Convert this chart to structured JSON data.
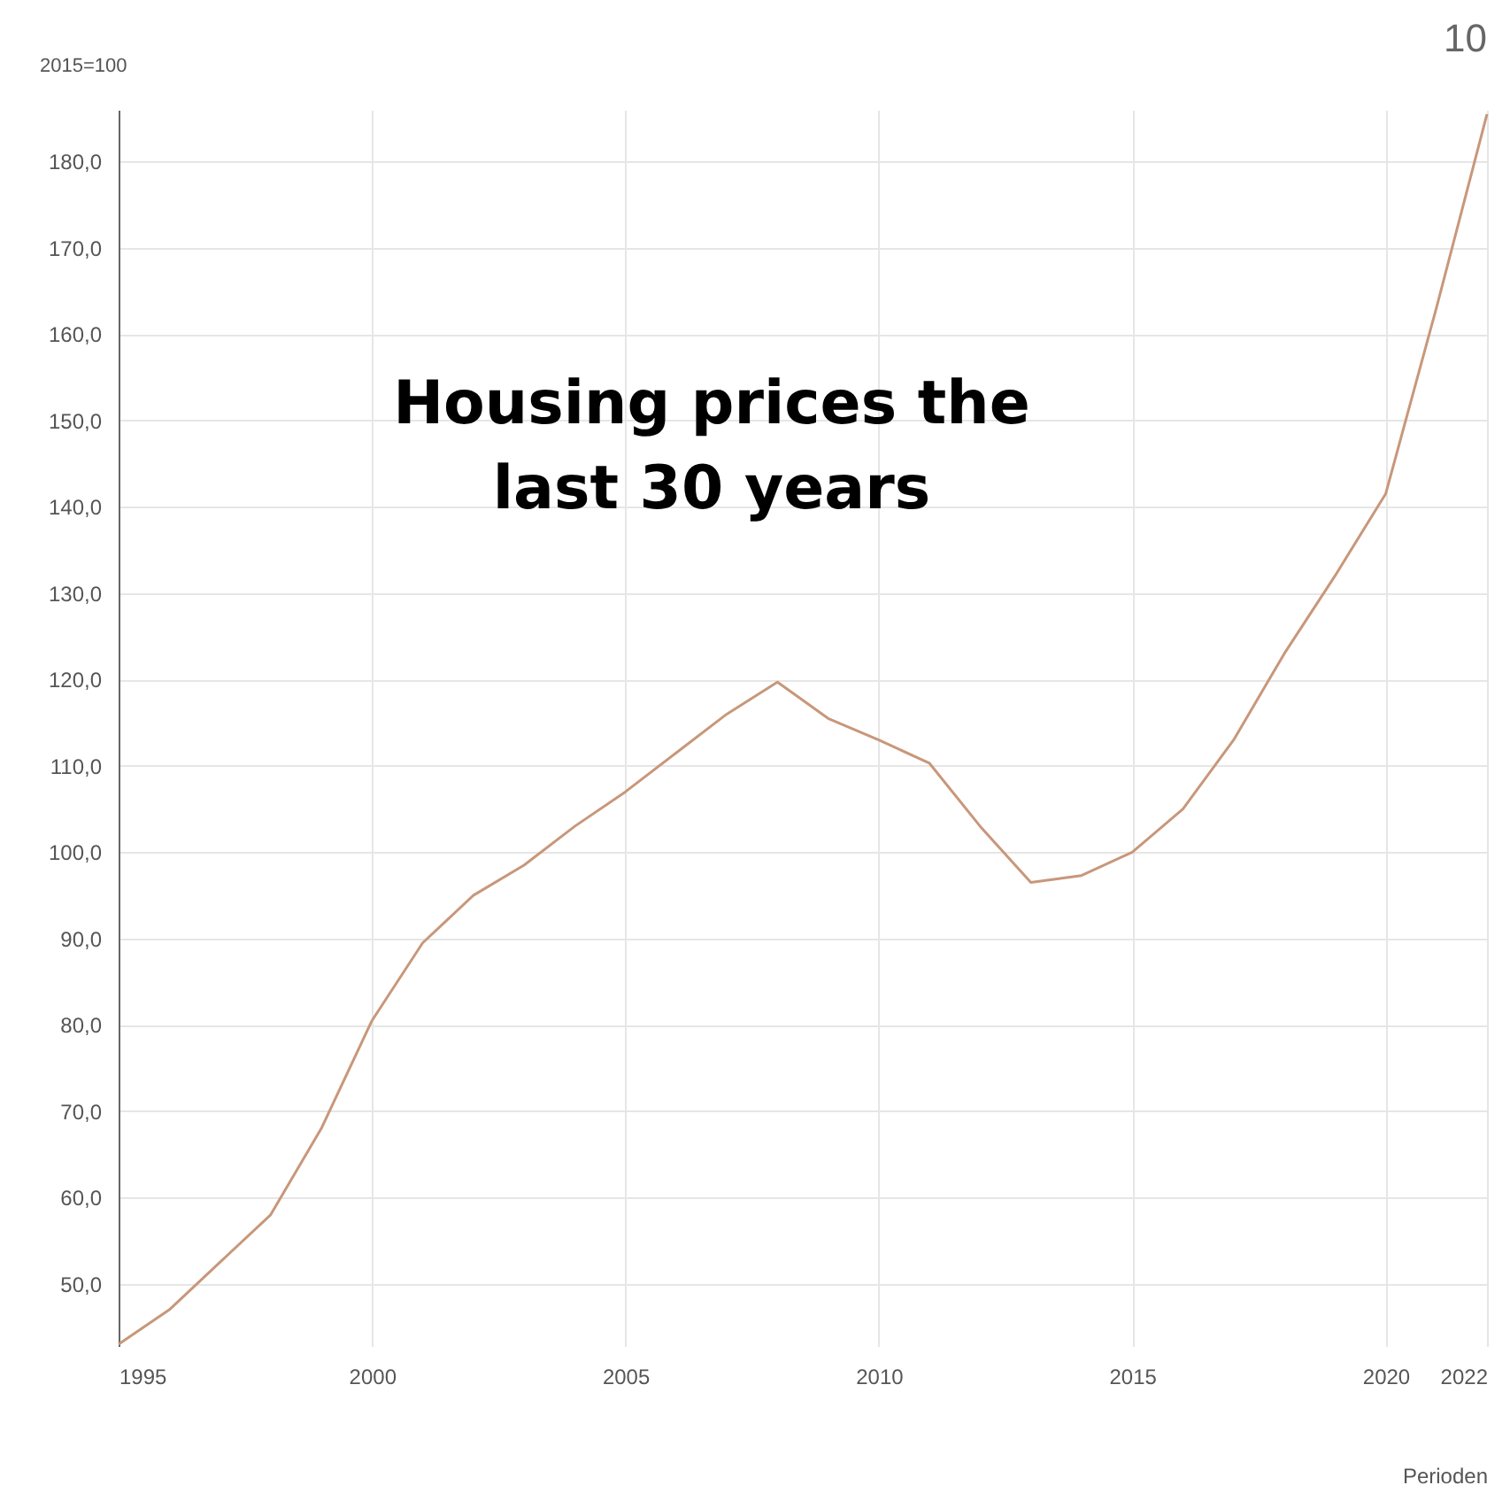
{
  "chart_data": {
    "type": "line",
    "title": "Housing prices the last 30 years",
    "ylabel": "2015=100",
    "xlabel": "Perioden",
    "annotations": [
      "10"
    ],
    "x": [
      1995,
      1996,
      1997,
      1998,
      1999,
      2000,
      2001,
      2002,
      2003,
      2004,
      2005,
      2006,
      2007,
      2008,
      2009,
      2010,
      2011,
      2012,
      2013,
      2014,
      2015,
      2016,
      2017,
      2018,
      2019,
      2020,
      2021,
      2022
    ],
    "series": [
      {
        "color": "#c8977a",
        "values": [
          43,
          47,
          52.5,
          58,
          68,
          80.5,
          89.5,
          95,
          98.5,
          103,
          107,
          111.5,
          116,
          119.7,
          115.5,
          113,
          110.3,
          103,
          96.5,
          97.3,
          100,
          105,
          113,
          123,
          132,
          141.5,
          163,
          185.5
        ]
      }
    ],
    "xlim": [
      1995,
      2022
    ],
    "xticks": [
      1995,
      2000,
      2005,
      2010,
      2015,
      2020,
      2022
    ],
    "ylim": [
      42.8,
      186
    ],
    "yticks": [
      {
        "value": 50,
        "label": "50,0"
      },
      {
        "value": 60,
        "label": "60,0"
      },
      {
        "value": 70,
        "label": "70,0"
      },
      {
        "value": 80,
        "label": "80,0"
      },
      {
        "value": 90,
        "label": "90,0"
      },
      {
        "value": 100,
        "label": "100,0"
      },
      {
        "value": 110,
        "label": "110,0"
      },
      {
        "value": 120,
        "label": "120,0"
      },
      {
        "value": 130,
        "label": "130,0"
      },
      {
        "value": 140,
        "label": "140,0"
      },
      {
        "value": 150,
        "label": "150,0"
      },
      {
        "value": 160,
        "label": "160,0"
      },
      {
        "value": 170,
        "label": "170,0"
      },
      {
        "value": 180,
        "label": "180,0"
      }
    ],
    "grid": true,
    "marker": "none",
    "line_style": "solid"
  }
}
